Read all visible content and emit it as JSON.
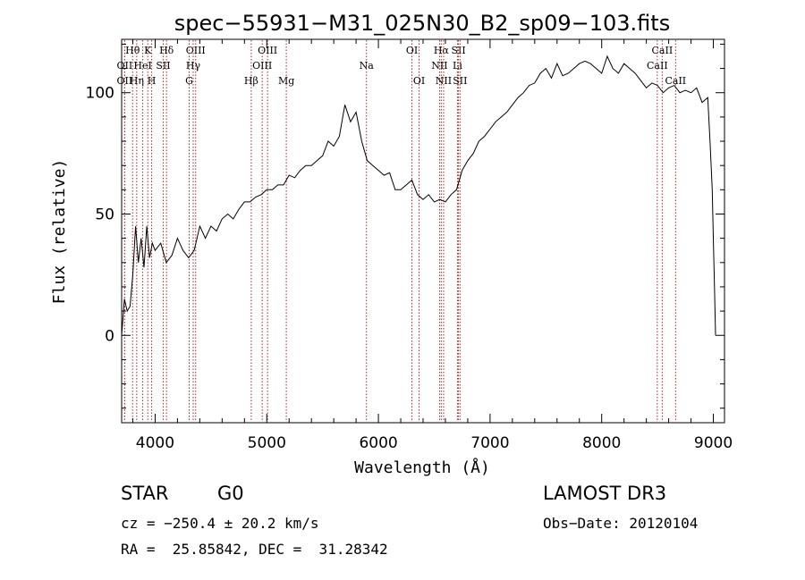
{
  "chart_data": {
    "type": "line",
    "title": "spec−55931−M31_025N30_B2_sp09−103.fits",
    "xlabel": "Wavelength (Å)",
    "ylabel": "Flux (relative)",
    "xlim": [
      3700,
      9100
    ],
    "ylim": [
      -36,
      122
    ],
    "xticks": [
      4000,
      5000,
      6000,
      7000,
      8000,
      9000
    ],
    "yticks": [
      0,
      50,
      100
    ],
    "grid": false,
    "series": [
      {
        "name": "flux",
        "color": "#000000",
        "x": [
          3700,
          3725,
          3750,
          3775,
          3800,
          3825,
          3850,
          3875,
          3900,
          3925,
          3950,
          3975,
          4000,
          4050,
          4100,
          4150,
          4200,
          4250,
          4300,
          4350,
          4400,
          4450,
          4500,
          4550,
          4600,
          4650,
          4700,
          4750,
          4800,
          4850,
          4900,
          4950,
          5000,
          5050,
          5100,
          5150,
          5200,
          5250,
          5300,
          5350,
          5400,
          5450,
          5500,
          5550,
          5600,
          5650,
          5700,
          5750,
          5800,
          5850,
          5900,
          5950,
          6000,
          6050,
          6100,
          6150,
          6200,
          6250,
          6300,
          6350,
          6400,
          6450,
          6500,
          6550,
          6600,
          6650,
          6700,
          6750,
          6800,
          6850,
          6900,
          6950,
          7000,
          7050,
          7100,
          7150,
          7200,
          7250,
          7300,
          7350,
          7400,
          7450,
          7500,
          7550,
          7600,
          7650,
          7700,
          7750,
          7800,
          7850,
          7900,
          7950,
          8000,
          8050,
          8100,
          8150,
          8200,
          8250,
          8300,
          8350,
          8400,
          8450,
          8500,
          8550,
          8600,
          8650,
          8700,
          8750,
          8800,
          8850,
          8900,
          8950,
          8970,
          8990,
          9000,
          9010,
          9020
        ],
        "y": [
          0,
          15,
          10,
          12,
          25,
          45,
          30,
          40,
          28,
          45,
          32,
          38,
          35,
          38,
          30,
          33,
          40,
          35,
          32,
          35,
          45,
          40,
          45,
          43,
          48,
          50,
          48,
          52,
          55,
          55,
          57,
          58,
          60,
          60,
          62,
          62,
          66,
          65,
          68,
          70,
          70,
          72,
          74,
          80,
          78,
          82,
          95,
          88,
          92,
          80,
          72,
          70,
          68,
          66,
          67,
          60,
          60,
          62,
          64,
          58,
          56,
          58,
          55,
          56,
          55,
          58,
          60,
          68,
          72,
          75,
          80,
          82,
          85,
          88,
          90,
          92,
          95,
          98,
          100,
          103,
          104,
          108,
          110,
          106,
          112,
          107,
          108,
          110,
          112,
          113,
          112,
          110,
          108,
          115,
          110,
          108,
          112,
          110,
          108,
          105,
          102,
          104,
          103,
          100,
          102,
          103,
          100,
          101,
          100,
          102,
          96,
          98,
          80,
          60,
          40,
          20,
          0
        ]
      }
    ],
    "lines": [
      {
        "label": "Hθ",
        "wl": 3798,
        "row": 1
      },
      {
        "label": "OII",
        "wl": 3727,
        "row": 2
      },
      {
        "label": "OII",
        "wl": 3727,
        "row": 3
      },
      {
        "label": "K",
        "wl": 3934,
        "row": 1
      },
      {
        "label": "HeI",
        "wl": 3889,
        "row": 2
      },
      {
        "label": "Hη",
        "wl": 3835,
        "row": 3
      },
      {
        "label": "H",
        "wl": 3969,
        "row": 3
      },
      {
        "label": "Hδ",
        "wl": 4102,
        "row": 1
      },
      {
        "label": "SII",
        "wl": 4072,
        "row": 2
      },
      {
        "label": "OIII",
        "wl": 4363,
        "row": 1
      },
      {
        "label": "Hγ",
        "wl": 4341,
        "row": 2
      },
      {
        "label": "G",
        "wl": 4305,
        "row": 3
      },
      {
        "label": "OIII",
        "wl": 5007,
        "row": 1
      },
      {
        "label": "OIII",
        "wl": 4959,
        "row": 2
      },
      {
        "label": "Hβ",
        "wl": 4861,
        "row": 3
      },
      {
        "label": "Mg",
        "wl": 5175,
        "row": 3
      },
      {
        "label": "Na",
        "wl": 5893,
        "row": 2
      },
      {
        "label": "OI",
        "wl": 6300,
        "row": 1
      },
      {
        "label": "OI",
        "wl": 6364,
        "row": 3
      },
      {
        "label": "Hα",
        "wl": 6563,
        "row": 1
      },
      {
        "label": "NII",
        "wl": 6548,
        "row": 2
      },
      {
        "label": "NII",
        "wl": 6584,
        "row": 3
      },
      {
        "label": "SII",
        "wl": 6717,
        "row": 1
      },
      {
        "label": "Li",
        "wl": 6708,
        "row": 2
      },
      {
        "label": "SII",
        "wl": 6731,
        "row": 3
      },
      {
        "label": "CaII",
        "wl": 8542,
        "row": 1
      },
      {
        "label": "CaII",
        "wl": 8498,
        "row": 2
      },
      {
        "label": "CaII",
        "wl": 8662,
        "row": 3
      }
    ]
  },
  "info": {
    "object_class": "STAR",
    "subclass": "G0",
    "survey": "LAMOST DR3",
    "redshift": "cz = −250.4 ± 20.2 km/s",
    "obs_date": "Obs−Date: 20120104",
    "coords": "RA =  25.85842, DEC =  31.28342"
  }
}
